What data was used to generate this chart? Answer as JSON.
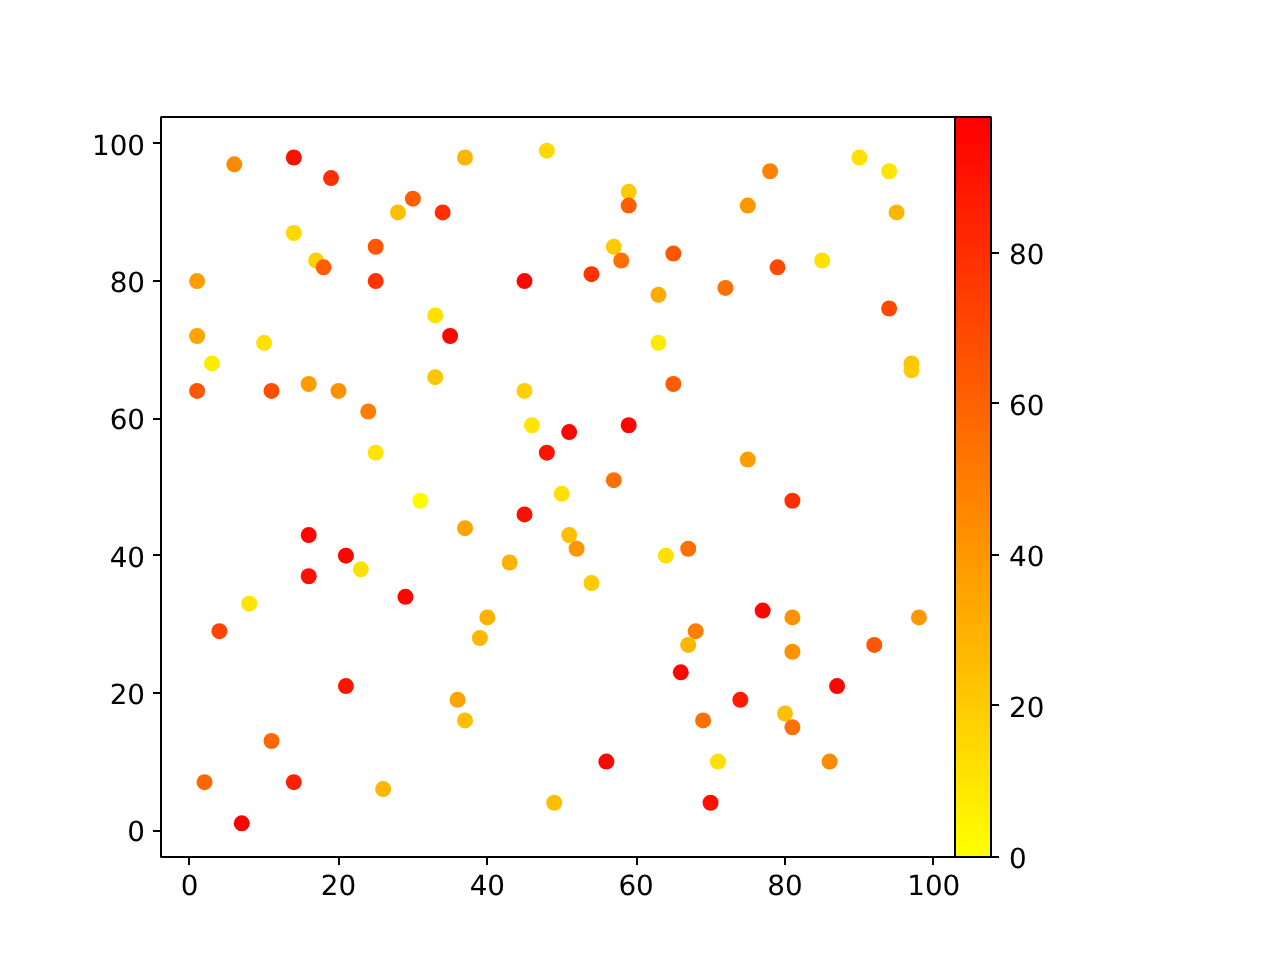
{
  "chart_data": {
    "type": "scatter",
    "marker": "circle",
    "grid": false,
    "x": [
      6,
      14,
      19,
      37,
      48,
      30,
      28,
      34,
      14,
      17,
      18,
      25,
      25,
      45,
      1,
      1,
      3,
      10,
      33,
      35,
      1,
      11,
      16,
      20,
      24,
      33,
      25,
      45,
      46,
      48,
      31,
      59,
      59,
      78,
      90,
      94,
      95,
      75,
      57,
      58,
      65,
      54,
      79,
      85,
      63,
      72,
      94,
      63,
      97,
      97,
      65,
      51,
      59,
      75,
      57,
      50,
      81,
      37,
      45,
      16,
      21,
      23,
      16,
      43,
      8,
      29,
      4,
      40,
      39,
      21,
      36,
      37,
      11,
      2,
      14,
      26,
      7,
      49,
      51,
      52,
      64,
      67,
      54,
      77,
      81,
      98,
      68,
      67,
      92,
      81,
      66,
      87,
      74,
      69,
      80,
      81,
      56,
      71,
      86,
      70
    ],
    "values": [
      97,
      98,
      95,
      98,
      99,
      92,
      90,
      90,
      87,
      83,
      82,
      85,
      80,
      80,
      80,
      72,
      68,
      71,
      75,
      72,
      64,
      64,
      65,
      64,
      61,
      66,
      55,
      64,
      59,
      55,
      48,
      93,
      91,
      96,
      98,
      96,
      90,
      91,
      85,
      83,
      84,
      81,
      82,
      83,
      78,
      79,
      76,
      71,
      68,
      67,
      65,
      58,
      59,
      54,
      51,
      49,
      48,
      44,
      46,
      43,
      40,
      38,
      37,
      39,
      33,
      34,
      29,
      31,
      28,
      21,
      19,
      16,
      13,
      7,
      7,
      6,
      1,
      4,
      43,
      41,
      40,
      41,
      36,
      32,
      31,
      31,
      29,
      27,
      27,
      26,
      23,
      21,
      19,
      16,
      17,
      15,
      10,
      10,
      10,
      4
    ],
    "cvalues": [
      45,
      92,
      80,
      28,
      15,
      62,
      25,
      80,
      15,
      18,
      62,
      65,
      78,
      95,
      38,
      35,
      8,
      12,
      12,
      95,
      65,
      68,
      38,
      42,
      50,
      22,
      10,
      18,
      10,
      90,
      2,
      20,
      62,
      48,
      12,
      10,
      28,
      40,
      20,
      55,
      65,
      78,
      70,
      12,
      32,
      55,
      70,
      8,
      22,
      20,
      62,
      95,
      95,
      38,
      55,
      12,
      80,
      35,
      92,
      95,
      95,
      12,
      92,
      30,
      10,
      95,
      72,
      30,
      28,
      90,
      35,
      25,
      58,
      58,
      85,
      28,
      98,
      25,
      25,
      40,
      12,
      55,
      20,
      95,
      42,
      40,
      50,
      28,
      65,
      42,
      95,
      95,
      88,
      55,
      25,
      55,
      95,
      12,
      45,
      92
    ],
    "clim": [
      0,
      98
    ],
    "cticks": [
      0,
      20,
      40,
      60,
      80
    ],
    "xlim": [
      -3.85,
      102.85
    ],
    "ylim": [
      -3.9,
      103.9
    ],
    "xticks": [
      0,
      20,
      40,
      60,
      80,
      100
    ],
    "yticks": [
      0,
      20,
      40,
      60,
      80,
      100
    ]
  }
}
